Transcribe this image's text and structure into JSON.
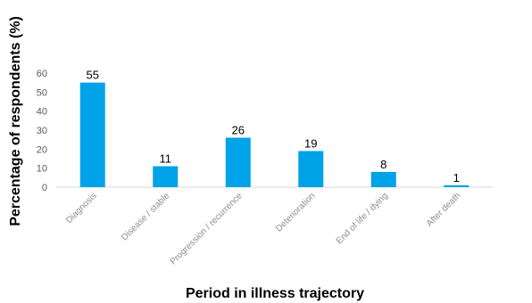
{
  "chart_data": {
    "type": "bar",
    "categories": [
      "Diagnosis",
      "Disease / stable",
      "Progression / recurrence",
      "Deterioration",
      "End of life / dying",
      "After death"
    ],
    "values": [
      55,
      11,
      26,
      19,
      8,
      1
    ],
    "data_labels": [
      "55",
      "11",
      "26",
      "19",
      "8",
      "1"
    ],
    "xlabel": "Period in illness trajectory",
    "ylabel": "Percentage of respondents (%)",
    "ylim": [
      0,
      60
    ],
    "yticks": [
      0,
      10,
      20,
      30,
      40,
      50,
      60
    ],
    "grid": false,
    "legend": "none",
    "bar_color": "#00a2e8"
  }
}
